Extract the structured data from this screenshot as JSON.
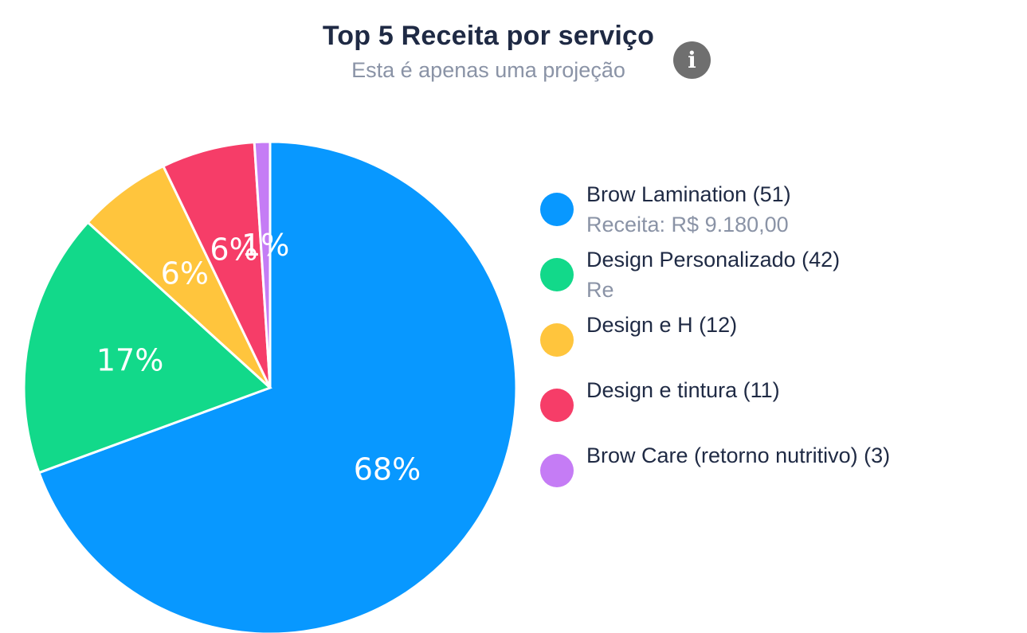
{
  "header": {
    "title": "Top 5 Receita por serviço",
    "subtitle": "Esta é apenas uma projeção"
  },
  "info_icon": {
    "icon": "info-icon",
    "glyph": "i"
  },
  "legend": [
    {
      "name": "Brow Lamination (51)",
      "revenue": "Receita: R$ 9.180,00",
      "color": "#0898ff"
    },
    {
      "name": "Design Personalizado (42)",
      "revenue": "Re",
      "color": "#12d98a"
    },
    {
      "name": "Design e H (12)",
      "revenue": "",
      "color": "#ffc53d"
    },
    {
      "name": "Design e tintura (11)",
      "revenue": "",
      "color": "#f63d68"
    },
    {
      "name": "Brow Care (retorno nutritivo) (3)",
      "revenue": "",
      "color": "#c57cf5"
    }
  ],
  "chart_data": {
    "type": "pie",
    "title": "Top 5 Receita por serviço",
    "subtitle": "Esta é apenas uma projeção",
    "categories": [
      "Brow Lamination (51)",
      "Design Personalizado (42)",
      "Design e H (12)",
      "Design e tintura (11)",
      "Brow Care (retorno nutritivo) (3)"
    ],
    "values": [
      68,
      17,
      6,
      6,
      1
    ],
    "labels": [
      "68%",
      "17%",
      "6%",
      "6%",
      "1%"
    ],
    "colors": [
      "#0898ff",
      "#12d98a",
      "#ffc53d",
      "#f63d68",
      "#c57cf5"
    ],
    "legend_position": "right"
  }
}
